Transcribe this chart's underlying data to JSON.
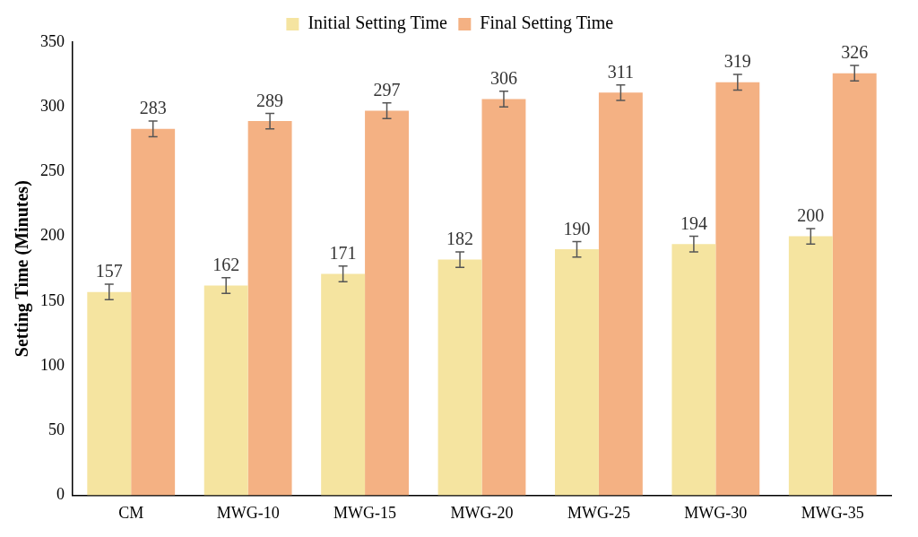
{
  "chart_data": {
    "type": "bar",
    "ylabel": "Setting Time (Minutes)",
    "categories": [
      "CM",
      "MWG-10",
      "MWG-15",
      "MWG-20",
      "MWG-25",
      "MWG-30",
      "MWG-35"
    ],
    "series": [
      {
        "name": "Initial Setting Time",
        "color": "#f5e4a0",
        "values": [
          157,
          162,
          171,
          182,
          190,
          194,
          200
        ],
        "errors": [
          6,
          6,
          6,
          6,
          6,
          6,
          6
        ]
      },
      {
        "name": "Final Setting Time",
        "color": "#f4b183",
        "values": [
          283,
          289,
          297,
          306,
          311,
          319,
          326
        ],
        "errors": [
          6,
          6,
          6,
          6,
          6,
          6,
          6
        ]
      }
    ],
    "ylim": [
      0,
      350
    ],
    "yticks": [
      0,
      50,
      100,
      150,
      200,
      250,
      300,
      350
    ],
    "grid": false,
    "legend": "top",
    "data_labels": true
  }
}
